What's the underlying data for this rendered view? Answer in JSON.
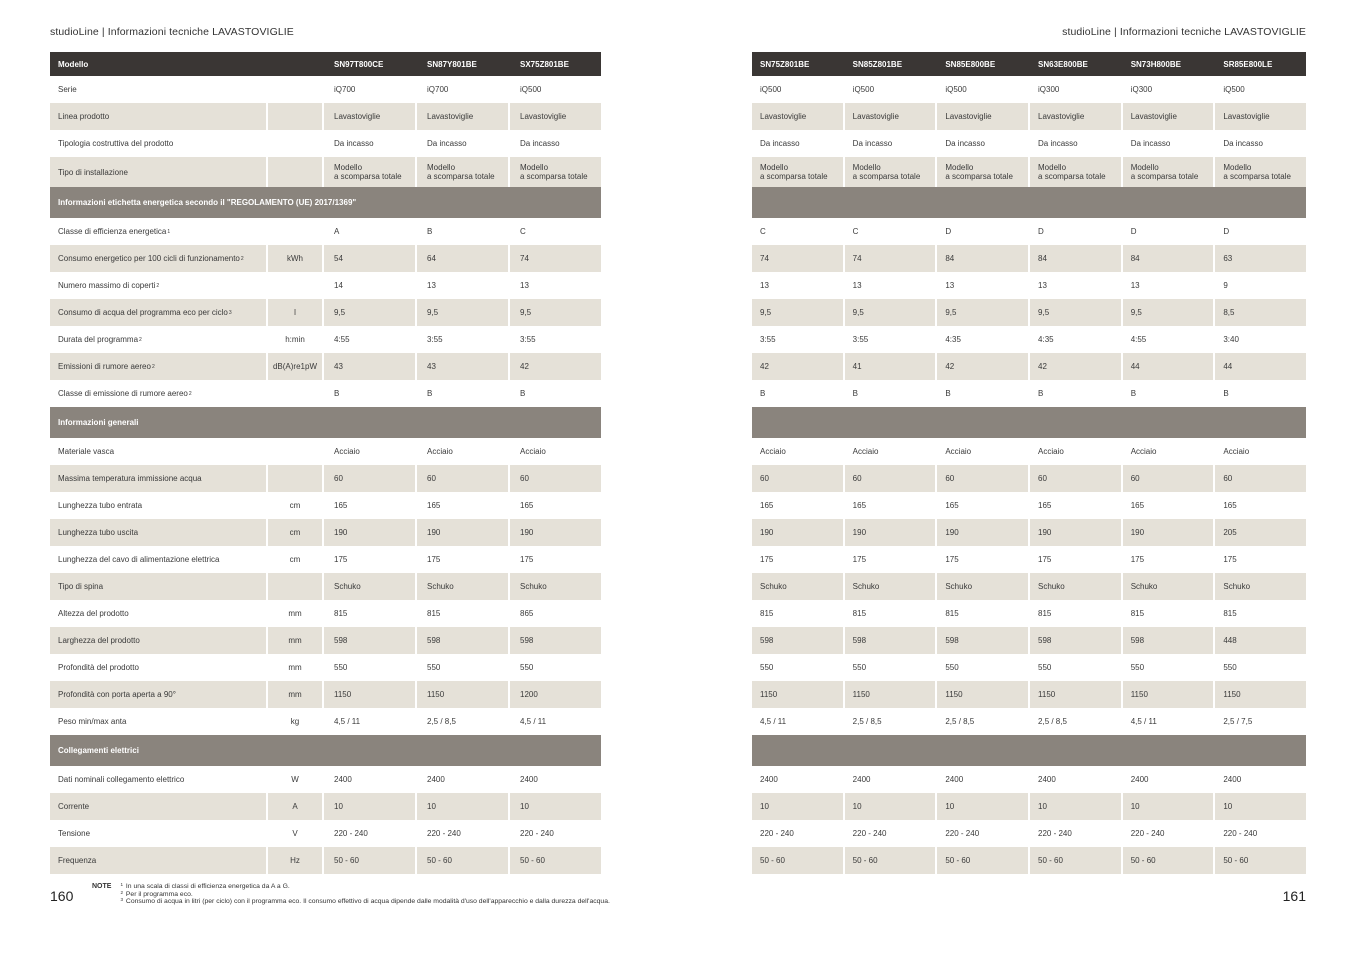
{
  "left": {
    "header": "studioLine | Informazioni tecniche LAVASTOVIGLIE",
    "page_number": "160"
  },
  "right": {
    "header": "studioLine | Informazioni tecniche LAVASTOVIGLIE",
    "page_number": "161"
  },
  "notes": {
    "label": "NOTE",
    "items": [
      {
        "sup": "1",
        "text": "In una scala di classi di efficienza energetica da A a G."
      },
      {
        "sup": "2",
        "text": "Per il programma eco."
      },
      {
        "sup": "3",
        "text": "Consumo di acqua in litri (per ciclo) con il programma eco. Il consumo effettivo di acqua dipende dalle modalità d'uso dell'apparecchio e dalla durezza dell'acqua."
      }
    ]
  },
  "colors": {
    "dark": "#3a3634",
    "band": "#8a847d",
    "beige": "#e5e1d8",
    "text": "#3a3a3a"
  },
  "chart_data": {
    "type": "table",
    "title": "Informazioni tecniche LAVASTOVIGLIE",
    "header_label": "Modello",
    "left_models": [
      "SN97T800CE",
      "SN87Y801BE",
      "SX75Z801BE"
    ],
    "right_models": [
      "SN75Z801BE",
      "SN85Z801BE",
      "SN85E800BE",
      "SN63E800BE",
      "SN73H800BE",
      "SR85E800LE"
    ],
    "sections": [
      {
        "band": null,
        "rows": [
          {
            "label": "Serie",
            "sup": "",
            "unit": "",
            "left": [
              "iQ700",
              "iQ700",
              "iQ500"
            ],
            "right": [
              "iQ500",
              "iQ500",
              "iQ500",
              "iQ300",
              "iQ300",
              "iQ500"
            ]
          },
          {
            "label": "Linea prodotto",
            "sup": "",
            "unit": "",
            "left": [
              "Lavastoviglie",
              "Lavastoviglie",
              "Lavastoviglie"
            ],
            "right": [
              "Lavastoviglie",
              "Lavastoviglie",
              "Lavastoviglie",
              "Lavastoviglie",
              "Lavastoviglie",
              "Lavastoviglie"
            ]
          },
          {
            "label": "Tipologia costruttiva del prodotto",
            "sup": "",
            "unit": "",
            "left": [
              "Da incasso",
              "Da incasso",
              "Da incasso"
            ],
            "right": [
              "Da incasso",
              "Da incasso",
              "Da incasso",
              "Da incasso",
              "Da incasso",
              "Da incasso"
            ]
          },
          {
            "label": "Tipo di installazione",
            "sup": "",
            "unit": "",
            "multiline": true,
            "left": [
              "Modello\na scomparsa totale",
              "Modello\na scomparsa totale",
              "Modello\na scomparsa totale"
            ],
            "right": [
              "Modello\na scomparsa totale",
              "Modello\na scomparsa totale",
              "Modello\na scomparsa totale",
              "Modello\na scomparsa totale",
              "Modello\na scomparsa totale",
              "Modello\na scomparsa totale"
            ]
          }
        ]
      },
      {
        "band": "Informazioni etichetta energetica secondo il \"REGOLAMENTO (UE) 2017/1369\"",
        "rows": [
          {
            "label": "Classe di efficienza energetica",
            "sup": "1",
            "unit": "",
            "left": [
              "A",
              "B",
              "C"
            ],
            "right": [
              "C",
              "C",
              "D",
              "D",
              "D",
              "D"
            ]
          },
          {
            "label": "Consumo energetico per 100 cicli di funzionamento ",
            "sup": "2",
            "unit": "kWh",
            "left": [
              "54",
              "64",
              "74"
            ],
            "right": [
              "74",
              "74",
              "84",
              "84",
              "84",
              "63"
            ]
          },
          {
            "label": "Numero massimo di coperti ",
            "sup": "2",
            "unit": "",
            "left": [
              "14",
              "13",
              "13"
            ],
            "right": [
              "13",
              "13",
              "13",
              "13",
              "13",
              "9"
            ]
          },
          {
            "label": "Consumo di acqua del programma eco per ciclo ",
            "sup": "3",
            "unit": "l",
            "left": [
              "9,5",
              "9,5",
              "9,5"
            ],
            "right": [
              "9,5",
              "9,5",
              "9,5",
              "9,5",
              "9,5",
              "8,5"
            ]
          },
          {
            "label": "Durata del programma ",
            "sup": "2",
            "unit": "h:min",
            "left": [
              "4:55",
              "3:55",
              "3:55"
            ],
            "right": [
              "3:55",
              "3:55",
              "4:35",
              "4:35",
              "4:55",
              "3:40"
            ]
          },
          {
            "label": "Emissioni di rumore aereo",
            "sup": "2",
            "unit": "dB(A)re1pW",
            "left": [
              "43",
              "43",
              "42"
            ],
            "right": [
              "42",
              "41",
              "42",
              "42",
              "44",
              "44"
            ]
          },
          {
            "label": "Classe di emissione di rumore aereo",
            "sup": "2",
            "unit": "",
            "left": [
              "B",
              "B",
              "B"
            ],
            "right": [
              "B",
              "B",
              "B",
              "B",
              "B",
              "B"
            ]
          }
        ]
      },
      {
        "band": "Informazioni generali",
        "rows": [
          {
            "label": "Materiale vasca",
            "sup": "",
            "unit": "",
            "left": [
              "Acciaio",
              "Acciaio",
              "Acciaio"
            ],
            "right": [
              "Acciaio",
              "Acciaio",
              "Acciaio",
              "Acciaio",
              "Acciaio",
              "Acciaio"
            ]
          },
          {
            "label": "Massima temperatura immissione acqua",
            "sup": "",
            "unit": "",
            "left": [
              "60",
              "60",
              "60"
            ],
            "right": [
              "60",
              "60",
              "60",
              "60",
              "60",
              "60"
            ]
          },
          {
            "label": "Lunghezza tubo entrata",
            "sup": "",
            "unit": "cm",
            "left": [
              "165",
              "165",
              "165"
            ],
            "right": [
              "165",
              "165",
              "165",
              "165",
              "165",
              "165"
            ]
          },
          {
            "label": "Lunghezza tubo uscita",
            "sup": "",
            "unit": "cm",
            "left": [
              "190",
              "190",
              "190"
            ],
            "right": [
              "190",
              "190",
              "190",
              "190",
              "190",
              "205"
            ]
          },
          {
            "label": "Lunghezza del cavo di alimentazione elettrica",
            "sup": "",
            "unit": "cm",
            "left": [
              "175",
              "175",
              "175"
            ],
            "right": [
              "175",
              "175",
              "175",
              "175",
              "175",
              "175"
            ]
          },
          {
            "label": "Tipo di spina",
            "sup": "",
            "unit": "",
            "left": [
              "Schuko",
              "Schuko",
              "Schuko"
            ],
            "right": [
              "Schuko",
              "Schuko",
              "Schuko",
              "Schuko",
              "Schuko",
              "Schuko"
            ]
          },
          {
            "label": "Altezza del prodotto",
            "sup": "",
            "unit": "mm",
            "left": [
              "815",
              "815",
              "865"
            ],
            "right": [
              "815",
              "815",
              "815",
              "815",
              "815",
              "815"
            ]
          },
          {
            "label": "Larghezza del prodotto",
            "sup": "",
            "unit": "mm",
            "left": [
              "598",
              "598",
              "598"
            ],
            "right": [
              "598",
              "598",
              "598",
              "598",
              "598",
              "448"
            ]
          },
          {
            "label": "Profondità del prodotto",
            "sup": "",
            "unit": "mm",
            "left": [
              "550",
              "550",
              "550"
            ],
            "right": [
              "550",
              "550",
              "550",
              "550",
              "550",
              "550"
            ]
          },
          {
            "label": "Profondità con porta aperta a 90°",
            "sup": "",
            "unit": "mm",
            "left": [
              "1150",
              "1150",
              "1200"
            ],
            "right": [
              "1150",
              "1150",
              "1150",
              "1150",
              "1150",
              "1150"
            ]
          },
          {
            "label": "Peso min/max anta",
            "sup": "",
            "unit": "kg",
            "left": [
              "4,5 / 11",
              "2,5 / 8,5",
              "4,5 / 11"
            ],
            "right": [
              "4,5 / 11",
              "2,5 / 8,5",
              "2,5 / 8,5",
              "2,5 / 8,5",
              "4,5 / 11",
              "2,5 / 7,5"
            ]
          }
        ]
      },
      {
        "band": "Collegamenti elettrici",
        "rows": [
          {
            "label": "Dati nominali collegamento elettrico",
            "sup": "",
            "unit": "W",
            "left": [
              "2400",
              "2400",
              "2400"
            ],
            "right": [
              "2400",
              "2400",
              "2400",
              "2400",
              "2400",
              "2400"
            ]
          },
          {
            "label": "Corrente",
            "sup": "",
            "unit": "A",
            "left": [
              "10",
              "10",
              "10"
            ],
            "right": [
              "10",
              "10",
              "10",
              "10",
              "10",
              "10"
            ]
          },
          {
            "label": "Tensione",
            "sup": "",
            "unit": "V",
            "left": [
              "220 - 240",
              "220 - 240",
              "220 - 240"
            ],
            "right": [
              "220 - 240",
              "220 - 240",
              "220 - 240",
              "220 - 240",
              "220 - 240",
              "220 - 240"
            ]
          },
          {
            "label": "Frequenza",
            "sup": "",
            "unit": "Hz",
            "left": [
              "50 - 60",
              "50 - 60",
              "50 - 60"
            ],
            "right": [
              "50 - 60",
              "50 - 60",
              "50 - 60",
              "50 - 60",
              "50 - 60",
              "50 - 60"
            ]
          }
        ]
      }
    ]
  }
}
